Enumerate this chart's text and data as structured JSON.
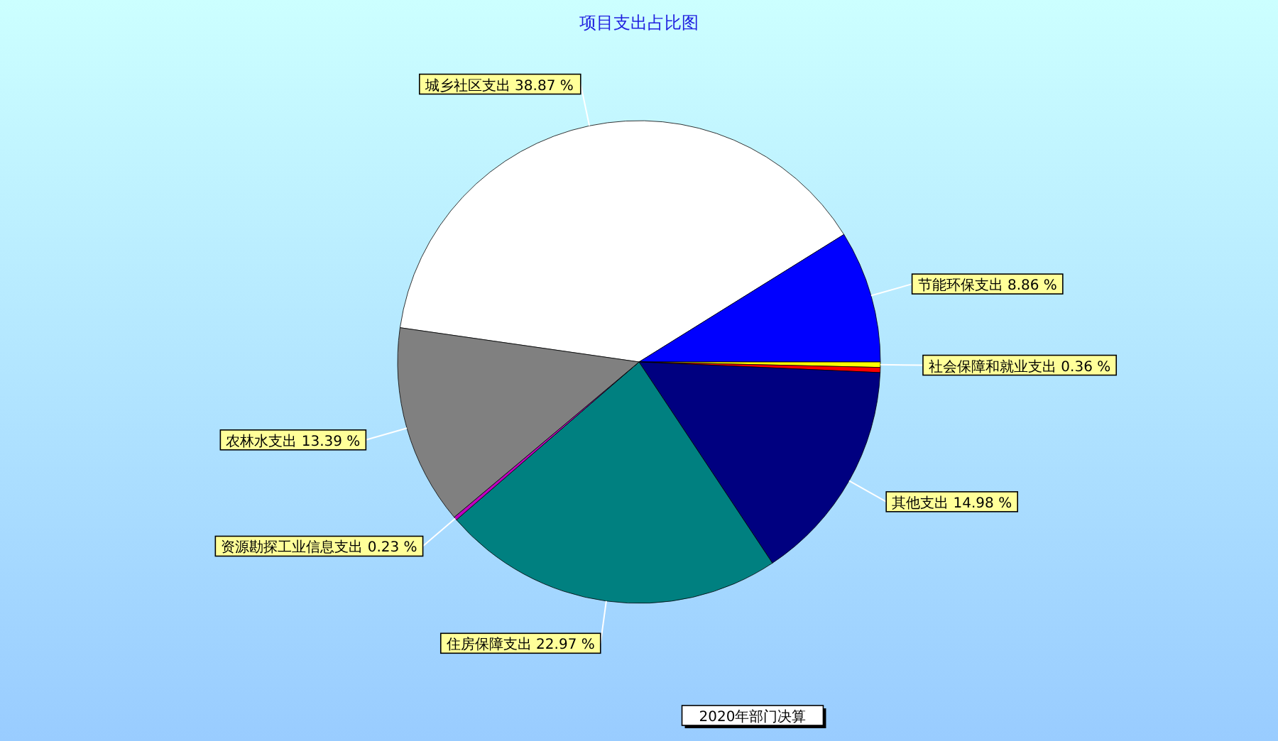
{
  "chart_data": {
    "type": "pie",
    "title": "项目支出占比图",
    "categories": [
      "城乡社区支出",
      "节能环保支出",
      "社会保障和就业支出",
      null,
      "其他支出",
      "住房保障支出",
      "资源勘探工业信息支出",
      "农林水支出"
    ],
    "values": [
      38.87,
      8.86,
      0.36,
      0.34,
      14.98,
      22.97,
      0.23,
      13.39
    ],
    "colors": [
      "#ffffff",
      "#0000ff",
      "#ffff00",
      "#ff0000",
      "#000080",
      "#008080",
      "#c000c0",
      "#808080"
    ],
    "value_labels": [
      "38.87 %",
      "8.86 %",
      "0.36 %",
      null,
      "14.98 %",
      "22.97 %",
      "0.23 %",
      "13.39 %"
    ],
    "annotations": [
      "2020年部门决算"
    ]
  }
}
